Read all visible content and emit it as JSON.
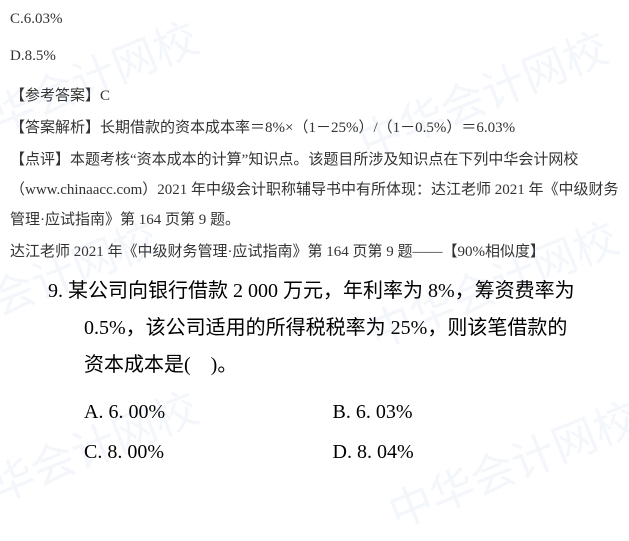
{
  "topOptions": {
    "c": "C.6.03%",
    "d": "D.8.5%"
  },
  "answer": {
    "label": "【参考答案】",
    "value": "C"
  },
  "analysis": {
    "label": "【答案解析】",
    "text": "长期借款的资本成本率＝8%×（1－25%）/（1－0.5%）＝6.03%"
  },
  "comment": {
    "label": "【点评】",
    "text": "本题考核“资本成本的计算”知识点。该题目所涉及知识点在下列中华会计网校（www.chinaacc.com）2021 年中级会计职称辅导书中有所体现：达江老师 2021 年《中级财务管理·应试指南》第 164 页第 9 题。"
  },
  "reference": {
    "text": "达江老师 2021 年《中级财务管理·应试指南》第 164 页第 9 题——",
    "similarity": "【90%相似度】"
  },
  "question": {
    "number": "9.",
    "text": "某公司向银行借款 2 000 万元，年利率为 8%，筹资费率为 0.5%，该公司适用的所得税税率为 25%，则该笔借款的资本成本是(　)。",
    "options": {
      "a": "A.  6. 00%",
      "b": "B.  6. 03%",
      "c": "C.  8. 00%",
      "d": "D.  8. 04%"
    }
  },
  "watermark": "中华会计网校",
  "colors": {
    "background": "#ffffff",
    "text_top": "#333333",
    "text_question": "#000000",
    "watermark": "rgba(100,140,200,0.08)"
  },
  "fonts": {
    "top_size": 15,
    "question_size": 20,
    "family": "SimSun"
  }
}
